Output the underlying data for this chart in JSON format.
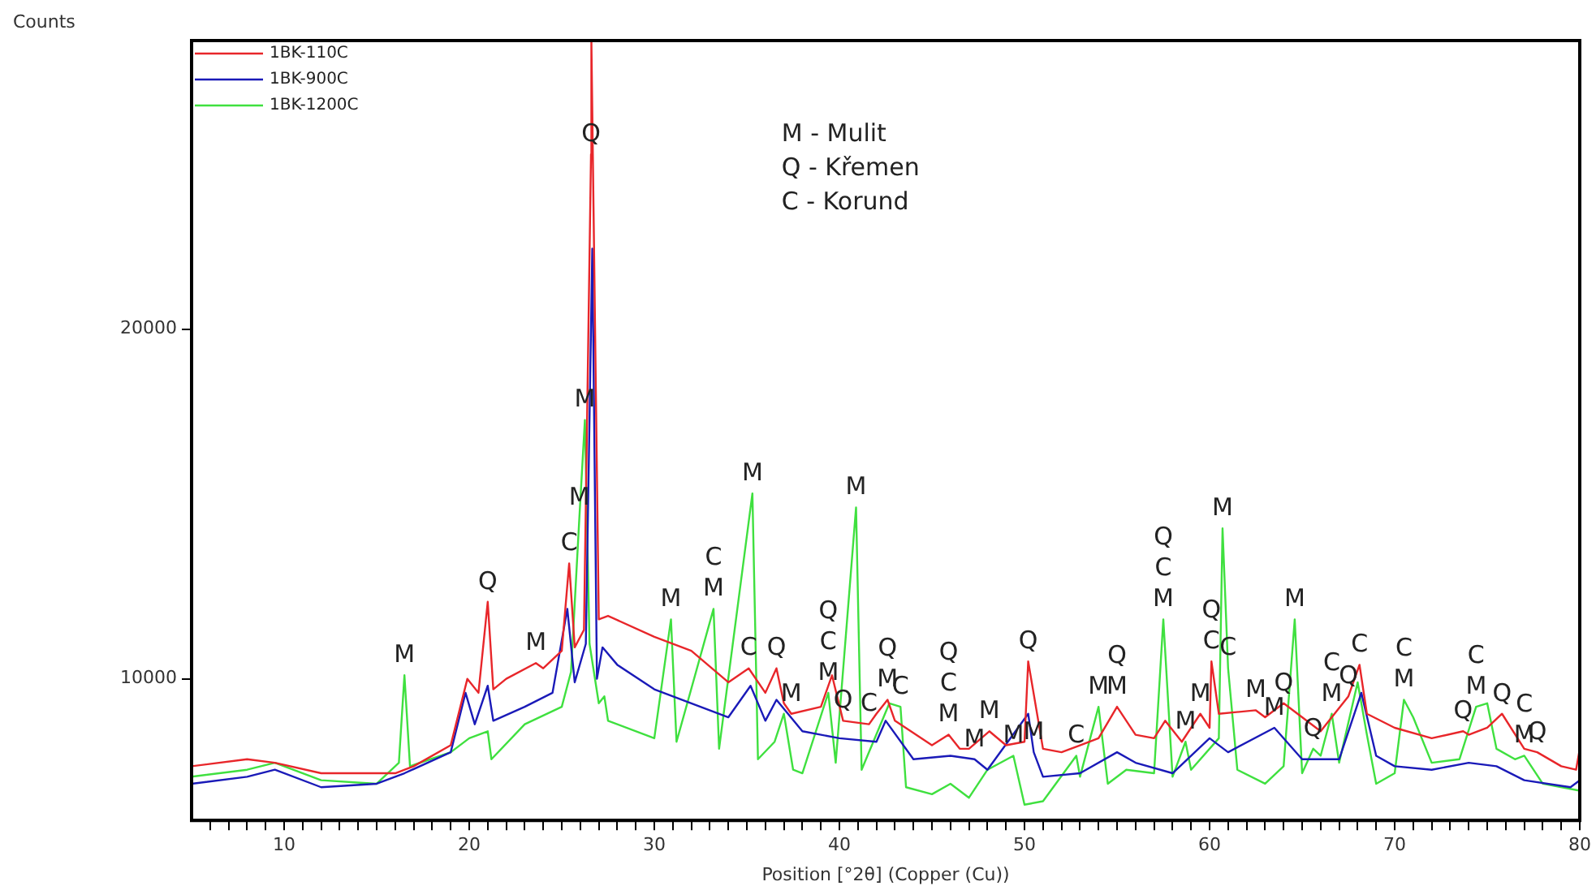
{
  "chart_data": {
    "type": "line",
    "xlabel": "Position [°2θ] (Copper (Cu))",
    "ylabel": "Counts",
    "legend": "top left",
    "marker": "none",
    "line_style": "solid",
    "xlim": [
      5,
      80
    ],
    "ylim": [
      5950,
      28250
    ],
    "xticks": [
      {
        "value": 6,
        "label": null
      },
      {
        "value": 7,
        "label": null
      },
      {
        "value": 8,
        "label": null
      },
      {
        "value": 9,
        "label": null
      },
      10,
      {
        "value": 11,
        "label": null
      },
      {
        "value": 12,
        "label": null
      },
      {
        "value": 13,
        "label": null
      },
      {
        "value": 14,
        "label": null
      },
      {
        "value": 15,
        "label": null
      },
      {
        "value": 16,
        "label": null
      },
      {
        "value": 17,
        "label": null
      },
      {
        "value": 18,
        "label": null
      },
      {
        "value": 19,
        "label": null
      },
      20,
      {
        "value": 21,
        "label": null
      },
      {
        "value": 22,
        "label": null
      },
      {
        "value": 23,
        "label": null
      },
      {
        "value": 24,
        "label": null
      },
      {
        "value": 25,
        "label": null
      },
      {
        "value": 26,
        "label": null
      },
      {
        "value": 27,
        "label": null
      },
      {
        "value": 28,
        "label": null
      },
      {
        "value": 29,
        "label": null
      },
      30,
      {
        "value": 31,
        "label": null
      },
      {
        "value": 32,
        "label": null
      },
      {
        "value": 33,
        "label": null
      },
      {
        "value": 34,
        "label": null
      },
      {
        "value": 35,
        "label": null
      },
      {
        "value": 36,
        "label": null
      },
      {
        "value": 37,
        "label": null
      },
      {
        "value": 38,
        "label": null
      },
      {
        "value": 39,
        "label": null
      },
      40,
      {
        "value": 41,
        "label": null
      },
      {
        "value": 42,
        "label": null
      },
      {
        "value": 43,
        "label": null
      },
      {
        "value": 44,
        "label": null
      },
      {
        "value": 45,
        "label": null
      },
      {
        "value": 46,
        "label": null
      },
      {
        "value": 47,
        "label": null
      },
      {
        "value": 48,
        "label": null
      },
      {
        "value": 49,
        "label": null
      },
      50,
      {
        "value": 51,
        "label": null
      },
      {
        "value": 52,
        "label": null
      },
      {
        "value": 53,
        "label": null
      },
      {
        "value": 54,
        "label": null
      },
      {
        "value": 55,
        "label": null
      },
      {
        "value": 56,
        "label": null
      },
      {
        "value": 57,
        "label": null
      },
      {
        "value": 58,
        "label": null
      },
      {
        "value": 59,
        "label": null
      },
      60,
      {
        "value": 61,
        "label": null
      },
      {
        "value": 62,
        "label": null
      },
      {
        "value": 63,
        "label": null
      },
      {
        "value": 64,
        "label": null
      },
      {
        "value": 65,
        "label": null
      },
      {
        "value": 66,
        "label": null
      },
      {
        "value": 67,
        "label": null
      },
      {
        "value": 68,
        "label": null
      },
      {
        "value": 69,
        "label": null
      },
      70,
      {
        "value": 71,
        "label": null
      },
      {
        "value": 72,
        "label": null
      },
      {
        "value": 73,
        "label": null
      },
      {
        "value": 74,
        "label": null
      },
      {
        "value": 75,
        "label": null
      },
      {
        "value": 76,
        "label": null
      },
      {
        "value": 77,
        "label": null
      },
      {
        "value": 78,
        "label": null
      },
      {
        "value": 79,
        "label": null
      },
      80
    ],
    "yticks": [
      10000,
      20000
    ],
    "series": [
      {
        "name": "1BK-110C",
        "color": "#e8262a",
        "x": [
          5,
          8,
          9.5,
          12,
          14,
          16,
          17,
          19,
          19.9,
          20.5,
          21,
          21.3,
          22,
          23.6,
          24,
          25,
          25.4,
          25.7,
          26.2,
          26.58,
          26.6,
          27,
          27.5,
          30,
          32,
          34,
          35.1,
          36,
          36.6,
          37,
          37.4,
          39,
          39.6,
          40.2,
          41.6,
          42,
          42.6,
          43,
          45,
          45.9,
          46.5,
          47,
          48.1,
          49,
          50,
          50.2,
          51,
          52,
          53,
          54,
          55,
          56,
          57,
          57.6,
          58.5,
          59.5,
          60,
          60.1,
          60.5,
          62.5,
          63,
          64,
          66,
          67.5,
          68.1,
          68.5,
          70,
          72,
          73.7,
          74,
          75,
          75.8,
          77,
          77.7,
          79,
          79.8,
          80
        ],
        "values": [
          7500,
          7700,
          7600,
          7300,
          7300,
          7300,
          7500,
          8100,
          10000,
          9600,
          12200,
          9700,
          10000,
          10450,
          10300,
          10800,
          13300,
          10900,
          11400,
          25000,
          28250,
          11700,
          11800,
          11200,
          10800,
          9900,
          10300,
          9600,
          10300,
          9300,
          9000,
          9200,
          10100,
          8800,
          8700,
          9000,
          9400,
          8800,
          8100,
          8400,
          8000,
          8000,
          8500,
          8100,
          8200,
          10500,
          8000,
          7900,
          8100,
          8300,
          9200,
          8400,
          8300,
          8800,
          8200,
          9000,
          8600,
          10500,
          9000,
          9100,
          8900,
          9300,
          8500,
          9500,
          10400,
          9000,
          8600,
          8300,
          8500,
          8400,
          8600,
          9000,
          8000,
          7900,
          7500,
          7400,
          8000
        ]
      },
      {
        "name": "1BK-900C",
        "color": "#1a1ab8",
        "x": [
          5,
          8,
          9.5,
          12,
          15,
          16.5,
          19,
          19.8,
          20.3,
          21,
          21.3,
          23,
          24.5,
          25.3,
          25.7,
          26.3,
          26.65,
          26.9,
          27.2,
          28,
          30,
          32,
          34,
          35.2,
          36,
          36.6,
          38,
          40,
          42,
          42.5,
          44,
          46,
          47.3,
          48,
          50.2,
          50.5,
          51,
          53,
          55,
          56,
          58,
          60,
          61,
          63.5,
          65,
          67,
          68.2,
          69,
          70,
          72,
          74,
          75.5,
          77,
          79.5,
          80
        ],
        "values": [
          7000,
          7200,
          7400,
          6900,
          7000,
          7300,
          7900,
          9600,
          8700,
          9800,
          8800,
          9200,
          9600,
          12000,
          9900,
          11000,
          22300,
          10000,
          10900,
          10400,
          9700,
          9300,
          8900,
          9800,
          8800,
          9400,
          8500,
          8300,
          8200,
          8800,
          7700,
          7800,
          7700,
          7400,
          9000,
          7900,
          7200,
          7300,
          7900,
          7600,
          7300,
          8300,
          7900,
          8600,
          7700,
          7700,
          9600,
          7800,
          7500,
          7400,
          7600,
          7500,
          7100,
          6900,
          7100
        ]
      },
      {
        "name": "1BK-1200C",
        "color": "#3fe03f",
        "x": [
          5,
          8,
          9.5,
          12,
          15,
          16.2,
          16.5,
          16.8,
          19,
          20,
          21,
          21.2,
          23,
          25,
          25.5,
          25.95,
          26.25,
          26.5,
          27,
          27.3,
          27.5,
          30,
          30.9,
          31.2,
          33.2,
          33.5,
          35.3,
          35.6,
          36.5,
          37,
          37.5,
          38,
          39.4,
          39.8,
          40.9,
          41.2,
          42.7,
          43.3,
          43.6,
          45,
          46,
          47,
          48,
          49.4,
          50,
          51,
          52.8,
          53,
          54,
          54.5,
          55.5,
          57,
          57.5,
          58,
          58.7,
          59,
          60.5,
          60.7,
          61,
          61.5,
          63,
          64,
          64.6,
          65,
          65.6,
          66,
          66.6,
          67,
          68,
          68.5,
          69,
          70,
          70.5,
          71,
          72,
          73.5,
          74.4,
          75,
          75.5,
          76.5,
          77,
          78,
          80
        ],
        "values": [
          7200,
          7400,
          7600,
          7100,
          7000,
          7600,
          10100,
          7500,
          7900,
          8300,
          8500,
          7700,
          8700,
          9200,
          10200,
          14600,
          17400,
          11000,
          9300,
          9500,
          8800,
          8300,
          11700,
          8200,
          12000,
          8000,
          15300,
          7700,
          8200,
          9000,
          7400,
          7300,
          9600,
          7600,
          14900,
          7400,
          9300,
          9200,
          6900,
          6700,
          7000,
          6600,
          7400,
          7800,
          6400,
          6500,
          7800,
          7200,
          9200,
          7000,
          7400,
          7300,
          11700,
          7200,
          8200,
          7400,
          8300,
          14300,
          10300,
          7400,
          7000,
          7500,
          11700,
          7300,
          8000,
          7800,
          9000,
          7600,
          9900,
          8400,
          7000,
          7300,
          9400,
          8900,
          7600,
          7700,
          9200,
          9300,
          8000,
          7700,
          7800,
          7000,
          6800
        ]
      }
    ],
    "annotations": [
      "M - Mulit",
      "Q - Křemen",
      "C - Korund",
      {
        "text": "M",
        "x": 16.5,
        "y": 10100
      },
      {
        "text": "Q",
        "x": 21,
        "y": 12200
      },
      {
        "text": "M",
        "x": 23.6,
        "y": 10450
      },
      {
        "text": "C",
        "x": 25.4,
        "y": 13300
      },
      {
        "text": "M",
        "x": 25.95,
        "y": 14600
      },
      {
        "text": "M",
        "x": 26.25,
        "y": 17400
      },
      {
        "text": "Q",
        "x": 26.58,
        "y": 25000
      },
      {
        "text": "M",
        "x": 30.9,
        "y": 11700
      },
      {
        "text": "C",
        "x": 33.2,
        "y": 12000
      },
      {
        "text": "M",
        "x": 33.2,
        "y": 12000
      },
      {
        "text": "M",
        "x": 35.3,
        "y": 15300
      },
      {
        "text": "C",
        "x": 35.1,
        "y": 10300
      },
      {
        "text": "Q",
        "x": 36.6,
        "y": 10300
      },
      {
        "text": "M",
        "x": 37.4,
        "y": 9000
      },
      {
        "text": "Q",
        "x": 39.4,
        "y": 9600
      },
      {
        "text": "C",
        "x": 39.4,
        "y": 9600
      },
      {
        "text": "M",
        "x": 39.4,
        "y": 9600
      },
      {
        "text": "Q",
        "x": 40.2,
        "y": 8800
      },
      {
        "text": "M",
        "x": 40.9,
        "y": 14900
      },
      {
        "text": "C",
        "x": 41.6,
        "y": 8700
      },
      {
        "text": "Q",
        "x": 42.6,
        "y": 9400
      },
      {
        "text": "M",
        "x": 42.6,
        "y": 9400
      },
      {
        "text": "C",
        "x": 43.3,
        "y": 9200
      },
      {
        "text": "Q",
        "x": 45.9,
        "y": 8400
      },
      {
        "text": "C",
        "x": 45.9,
        "y": 8400
      },
      {
        "text": "M",
        "x": 45.9,
        "y": 8400
      },
      {
        "text": "M",
        "x": 47.3,
        "y": 7700
      },
      {
        "text": "M",
        "x": 48.1,
        "y": 8500
      },
      {
        "text": "M",
        "x": 49.4,
        "y": 7800
      },
      {
        "text": "Q",
        "x": 50.2,
        "y": 10500
      },
      {
        "text": "M",
        "x": 50.5,
        "y": 7900
      },
      {
        "text": "C",
        "x": 52.8,
        "y": 7800
      },
      {
        "text": "M",
        "x": 54,
        "y": 9200
      },
      {
        "text": "Q",
        "x": 55,
        "y": 9200
      },
      {
        "text": "M",
        "x": 55,
        "y": 9200
      },
      {
        "text": "Q",
        "x": 57.5,
        "y": 11700
      },
      {
        "text": "C",
        "x": 57.5,
        "y": 11700
      },
      {
        "text": "M",
        "x": 57.5,
        "y": 11700
      },
      {
        "text": "M",
        "x": 58.7,
        "y": 8200
      },
      {
        "text": "M",
        "x": 59.5,
        "y": 9000
      },
      {
        "text": "Q",
        "x": 60.1,
        "y": 10500
      },
      {
        "text": "C",
        "x": 60.1,
        "y": 10500
      },
      {
        "text": "C",
        "x": 61,
        "y": 10300
      },
      {
        "text": "M",
        "x": 60.7,
        "y": 14300
      },
      {
        "text": "M",
        "x": 62.5,
        "y": 9100
      },
      {
        "text": "M",
        "x": 63.5,
        "y": 8600
      },
      {
        "text": "Q",
        "x": 64,
        "y": 9300
      },
      {
        "text": "M",
        "x": 64.6,
        "y": 11700
      },
      {
        "text": "Q",
        "x": 65.6,
        "y": 8000
      },
      {
        "text": "C",
        "x": 66.6,
        "y": 9000
      },
      {
        "text": "M",
        "x": 66.6,
        "y": 9000
      },
      {
        "text": "Q",
        "x": 67.5,
        "y": 9500
      },
      {
        "text": "C",
        "x": 68.1,
        "y": 10400
      },
      {
        "text": "C",
        "x": 70.5,
        "y": 9400
      },
      {
        "text": "M",
        "x": 70.5,
        "y": 9400
      },
      {
        "text": "Q",
        "x": 73.7,
        "y": 8500
      },
      {
        "text": "C",
        "x": 74.4,
        "y": 9200
      },
      {
        "text": "M",
        "x": 74.4,
        "y": 9200
      },
      {
        "text": "Q",
        "x": 75.8,
        "y": 9000
      },
      {
        "text": "C",
        "x": 77,
        "y": 7800
      },
      {
        "text": "M",
        "x": 77,
        "y": 7800
      },
      {
        "text": "Q",
        "x": 77.7,
        "y": 7900
      }
    ]
  }
}
